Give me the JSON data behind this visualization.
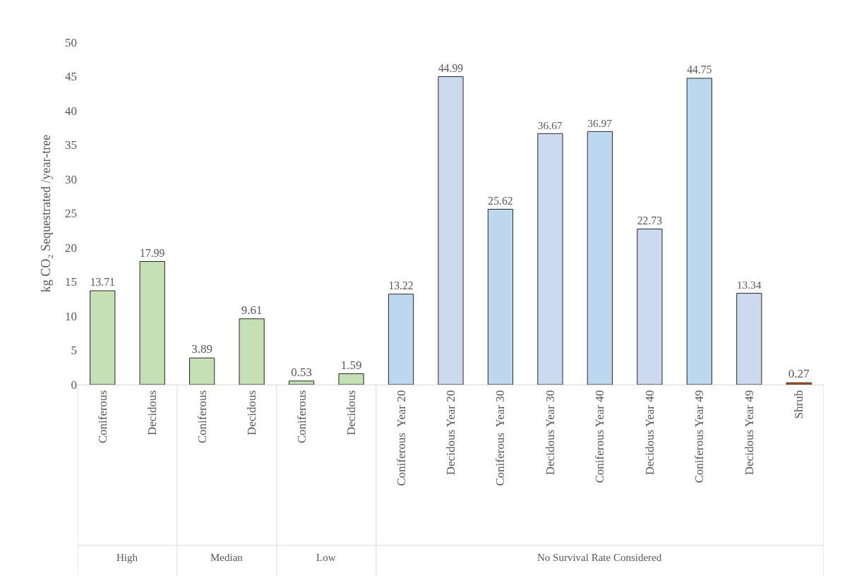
{
  "chart_data": {
    "type": "bar",
    "ylabel": "kg CO₂ Sequestrated /year-tree",
    "categories": [
      "Coniferous",
      "Decidous",
      "Coniferous",
      "Decidous",
      "Coniferous",
      "Decidous",
      "Coniferous  Year 20",
      "Decidous Year 20",
      "Coniferous  Year 30",
      "Decidous Year 30",
      "Coniferous Year 40",
      "Decidous Year 40",
      "Coniferous Year 49",
      "Decidous Year 49",
      "Shrub"
    ],
    "values": [
      13.71,
      17.99,
      3.89,
      9.61,
      0.53,
      1.59,
      13.22,
      44.99,
      25.62,
      36.67,
      36.97,
      22.73,
      44.75,
      13.34,
      0.27
    ],
    "colors": [
      "#c5e0b4",
      "#c5e0b4",
      "#c5e0b4",
      "#c5e0b4",
      "#c5e0b4",
      "#c5e0b4",
      "#bdd7ee",
      "#cdd9ef",
      "#bdd7ee",
      "#cdd9ef",
      "#bdd7ee",
      "#cdd9ef",
      "#bdd7ee",
      "#cdd9ef",
      "#c55a11"
    ],
    "annotations": [
      "High",
      "Median",
      "Low",
      "No Survival Rate Considered"
    ],
    "ylim": [
      0,
      50
    ],
    "yticks": [
      0,
      5,
      10,
      15,
      20,
      25,
      30,
      35,
      40,
      45,
      50
    ],
    "data_labels": true
  }
}
